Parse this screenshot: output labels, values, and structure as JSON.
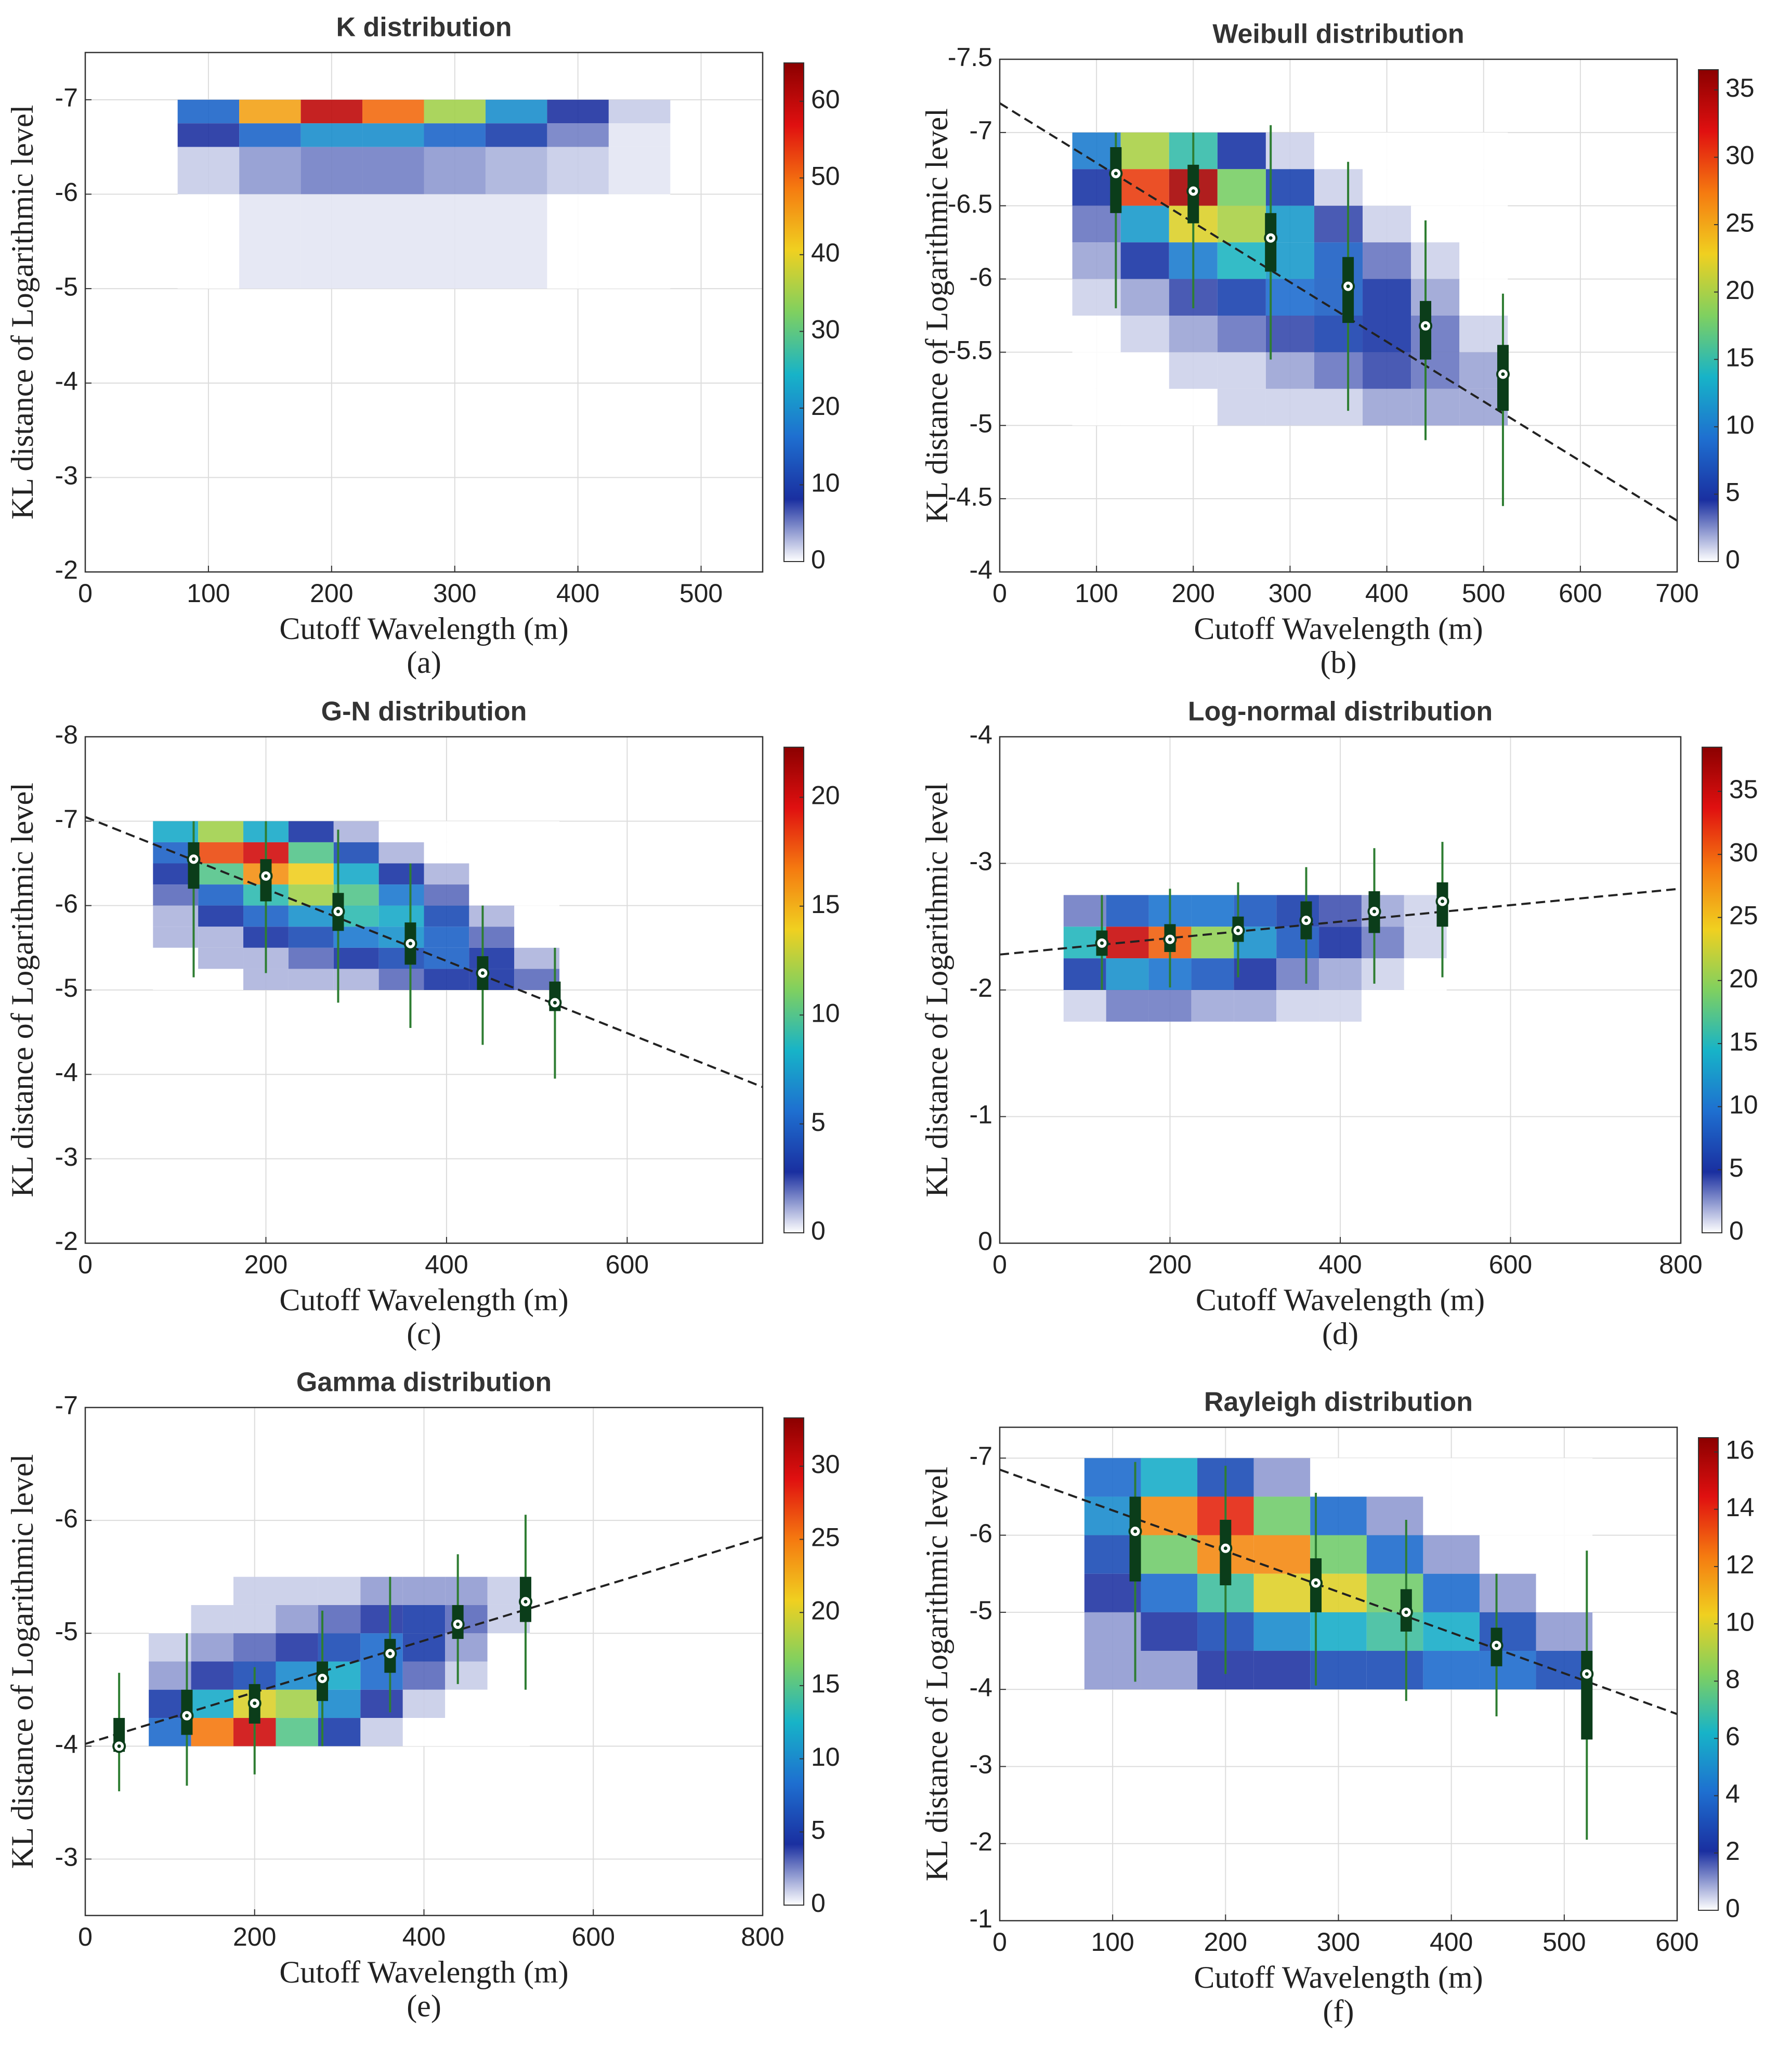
{
  "chart_data": [
    {
      "type": "heatmap",
      "title": "K distribution",
      "xlabel": "Cutoff Wavelength (m)",
      "ylabel": "KL distance of Logarithmic level",
      "panel": "(a)",
      "xlim": [
        0,
        550
      ],
      "xticks": [
        0,
        100,
        200,
        300,
        400,
        500
      ],
      "ylim": [
        -2,
        -7.5
      ],
      "yticks": [
        -7,
        -6,
        -5,
        -4,
        -3,
        -2
      ],
      "grid": true,
      "density": {
        "xbins": [
          75,
          125,
          175,
          225,
          275,
          325,
          375,
          425,
          475
        ],
        "ybins": [
          -7,
          -6.75,
          -6.5,
          -6,
          -5
        ],
        "counts": [
          [
            15,
            45,
            60,
            50,
            35,
            20,
            8,
            2
          ],
          [
            8,
            15,
            20,
            20,
            15,
            10,
            5,
            1
          ],
          [
            2,
            4,
            5,
            5,
            4,
            3,
            2,
            1
          ],
          [
            0,
            1,
            1,
            1,
            1,
            1,
            0,
            0
          ]
        ]
      },
      "clim": [
        0,
        65
      ],
      "cticks": [
        0,
        10,
        20,
        30,
        40,
        50,
        60
      ],
      "colormap": [
        "#ffffff",
        "#1a2fa0",
        "#1e6fd0",
        "#17b3c8",
        "#7fd060",
        "#f0d020",
        "#f57a10",
        "#e01010",
        "#8b0000"
      ]
    },
    {
      "type": "heatmap",
      "title": "Weibull distribution",
      "xlabel": "Cutoff Wavelength (m)",
      "ylabel": "KL distance of Logarithmic level",
      "panel": "(b)",
      "xlim": [
        0,
        700
      ],
      "xticks": [
        0,
        100,
        200,
        300,
        400,
        500,
        600,
        700
      ],
      "ylim": [
        -4,
        -7.5
      ],
      "yticks": [
        -7.5,
        -7,
        -6.5,
        -6,
        -5.5,
        -5,
        -4.5,
        -4
      ],
      "grid": true,
      "density": {
        "xbins": [
          75,
          125,
          175,
          225,
          275,
          325,
          375,
          425,
          475,
          525
        ],
        "ybins": [
          -7,
          -6.75,
          -6.5,
          -6.25,
          -6,
          -5.75,
          -5.5,
          -5.25,
          -5
        ],
        "counts": [
          [
            10,
            20,
            15,
            5,
            1,
            0,
            0,
            0,
            0
          ],
          [
            5,
            30,
            35,
            18,
            6,
            1,
            0,
            0,
            0
          ],
          [
            3,
            12,
            22,
            20,
            12,
            4,
            1,
            0,
            0
          ],
          [
            2,
            5,
            10,
            14,
            12,
            8,
            3,
            1,
            0
          ],
          [
            1,
            2,
            4,
            6,
            9,
            8,
            5,
            2,
            0
          ],
          [
            0,
            1,
            2,
            3,
            4,
            6,
            5,
            3,
            1
          ],
          [
            0,
            0,
            1,
            1,
            2,
            3,
            4,
            3,
            2
          ],
          [
            0,
            0,
            0,
            1,
            1,
            1,
            2,
            2,
            2
          ]
        ]
      },
      "clim": [
        0,
        36.5
      ],
      "cticks": [
        0,
        5,
        10,
        15,
        20,
        25,
        30,
        35
      ],
      "colormap": [
        "#ffffff",
        "#1a2fa0",
        "#1e6fd0",
        "#17b3c8",
        "#7fd060",
        "#f0d020",
        "#f57a10",
        "#e01010",
        "#8b0000"
      ],
      "boxes": {
        "x": [
          120,
          200,
          280,
          360,
          440,
          520
        ],
        "median": [
          -6.72,
          -6.6,
          -6.28,
          -5.95,
          -5.68,
          -5.35
        ],
        "q1": [
          -6.9,
          -6.78,
          -6.45,
          -6.15,
          -5.85,
          -5.55
        ],
        "q3": [
          -6.45,
          -6.38,
          -6.05,
          -5.7,
          -5.45,
          -5.1
        ],
        "whislo": [
          -7.0,
          -7.0,
          -7.05,
          -6.8,
          -6.4,
          -5.9
        ],
        "whishi": [
          -5.8,
          -5.8,
          -5.45,
          -5.1,
          -4.9,
          -4.45
        ]
      },
      "box_color": "#0b3d1a",
      "whisker_color": "#2e7d32",
      "fit": {
        "x": [
          0,
          700
        ],
        "y": [
          -7.2,
          -4.35
        ]
      },
      "fit_color": "#222222"
    },
    {
      "type": "heatmap",
      "title": "G-N distribution",
      "xlabel": "Cutoff Wavelength (m)",
      "ylabel": "KL distance of Logarithmic level",
      "panel": "(c)",
      "xlim": [
        0,
        750
      ],
      "xticks": [
        0,
        200,
        400,
        600
      ],
      "ylim": [
        -2,
        -8
      ],
      "yticks": [
        -8,
        -7,
        -6,
        -5,
        -4,
        -3,
        -2
      ],
      "grid": true,
      "density": {
        "xbins": [
          75,
          125,
          175,
          225,
          275,
          325,
          375,
          425,
          475,
          525
        ],
        "ybins": [
          -7,
          -6.75,
          -6.5,
          -6.25,
          -6,
          -5.75,
          -5.5,
          -5.25,
          -5
        ],
        "counts": [
          [
            8,
            12,
            8,
            3,
            1,
            0,
            0,
            0,
            0
          ],
          [
            5,
            18,
            20,
            10,
            4,
            1,
            0,
            0,
            0
          ],
          [
            3,
            10,
            16,
            14,
            8,
            3,
            1,
            0,
            0
          ],
          [
            2,
            5,
            9,
            12,
            10,
            6,
            2,
            0,
            0
          ],
          [
            1,
            3,
            5,
            7,
            9,
            8,
            4,
            1,
            0
          ],
          [
            1,
            1,
            3,
            4,
            6,
            7,
            5,
            2,
            0
          ],
          [
            0,
            1,
            1,
            2,
            3,
            4,
            5,
            3,
            1
          ],
          [
            0,
            0,
            1,
            1,
            1,
            2,
            3,
            3,
            2
          ]
        ]
      },
      "clim": [
        0,
        22.3
      ],
      "cticks": [
        0,
        5,
        10,
        15,
        20
      ],
      "colormap": [
        "#ffffff",
        "#1a2fa0",
        "#1e6fd0",
        "#17b3c8",
        "#7fd060",
        "#f0d020",
        "#f57a10",
        "#e01010",
        "#8b0000"
      ],
      "boxes": {
        "x": [
          120,
          200,
          280,
          360,
          440,
          520
        ],
        "median": [
          -6.55,
          -6.35,
          -5.93,
          -5.55,
          -5.2,
          -4.85
        ],
        "q1": [
          -6.75,
          -6.55,
          -6.15,
          -5.8,
          -5.4,
          -5.1
        ],
        "q3": [
          -6.2,
          -6.05,
          -5.7,
          -5.3,
          -5.0,
          -4.75
        ],
        "whislo": [
          -7.0,
          -7.0,
          -6.9,
          -6.5,
          -6.0,
          -5.5
        ],
        "whishi": [
          -5.15,
          -5.2,
          -4.85,
          -4.55,
          -4.35,
          -3.95
        ]
      },
      "box_color": "#0b3d1a",
      "whisker_color": "#2e7d32",
      "fit": {
        "x": [
          0,
          750
        ],
        "y": [
          -7.05,
          -3.85
        ]
      },
      "fit_color": "#222222"
    },
    {
      "type": "heatmap",
      "title": "Log-normal distribution",
      "xlabel": "Cutoff Wavelength (m)",
      "ylabel": "KL distance of Logarithmic level",
      "panel": "(d)",
      "xlim": [
        0,
        800
      ],
      "xticks": [
        0,
        200,
        400,
        600,
        800
      ],
      "ylim": [
        0,
        -4
      ],
      "yticks": [
        -4,
        -3,
        -2,
        -1,
        0
      ],
      "grid": true,
      "density": {
        "xbins": [
          75,
          125,
          175,
          225,
          275,
          325,
          375,
          425,
          475,
          525
        ],
        "ybins": [
          -2.75,
          -2.5,
          -2.25,
          -2,
          -1.75
        ],
        "counts": [
          [
            3,
            8,
            10,
            10,
            8,
            6,
            4,
            2,
            1
          ],
          [
            15,
            35,
            30,
            20,
            12,
            8,
            5,
            3,
            1
          ],
          [
            6,
            12,
            10,
            8,
            5,
            3,
            2,
            1,
            0
          ],
          [
            1,
            3,
            3,
            2,
            2,
            1,
            1,
            0,
            0
          ]
        ]
      },
      "clim": [
        0,
        38.5
      ],
      "cticks": [
        0,
        5,
        10,
        15,
        20,
        25,
        30,
        35
      ],
      "colormap": [
        "#ffffff",
        "#1a2fa0",
        "#1e6fd0",
        "#17b3c8",
        "#7fd060",
        "#f0d020",
        "#f57a10",
        "#e01010",
        "#8b0000"
      ],
      "boxes": {
        "x": [
          120,
          200,
          280,
          360,
          440,
          520
        ],
        "median": [
          -2.37,
          -2.4,
          -2.47,
          -2.55,
          -2.62,
          -2.7
        ],
        "q1": [
          -2.47,
          -2.52,
          -2.58,
          -2.7,
          -2.78,
          -2.85
        ],
        "q3": [
          -2.27,
          -2.3,
          -2.38,
          -2.4,
          -2.45,
          -2.5
        ],
        "whislo": [
          -2.75,
          -2.8,
          -2.85,
          -2.97,
          -3.12,
          -3.17
        ],
        "whishi": [
          -2.0,
          -2.02,
          -2.1,
          -2.05,
          -2.05,
          -2.1
        ]
      },
      "box_color": "#0b3d1a",
      "whisker_color": "#2e7d32",
      "fit": {
        "x": [
          0,
          800
        ],
        "y": [
          -2.28,
          -2.8
        ]
      },
      "fit_color": "#222222"
    },
    {
      "type": "heatmap",
      "title": "Gamma distribution",
      "xlabel": "Cutoff Wavelength (m)",
      "ylabel": "KL distance of Logarithmic level",
      "panel": "(e)",
      "xlim": [
        0,
        800
      ],
      "xticks": [
        0,
        200,
        400,
        600,
        800
      ],
      "ylim": [
        -2.5,
        -7
      ],
      "yticks": [
        -7,
        -6,
        -5,
        -4,
        -3
      ],
      "grid": true,
      "density": {
        "xbins": [
          75,
          125,
          175,
          225,
          275,
          325,
          375,
          425,
          475,
          525
        ],
        "ybins": [
          -5.5,
          -5.25,
          -5,
          -4.75,
          -4.5,
          -4.25,
          -4
        ],
        "counts": [
          [
            0,
            0,
            1,
            1,
            1,
            2,
            2,
            2,
            1
          ],
          [
            0,
            1,
            1,
            2,
            3,
            4,
            5,
            3,
            1
          ],
          [
            1,
            2,
            3,
            4,
            6,
            8,
            5,
            2,
            0
          ],
          [
            2,
            4,
            6,
            10,
            12,
            8,
            3,
            1,
            0
          ],
          [
            5,
            12,
            20,
            18,
            10,
            4,
            1,
            0,
            0
          ],
          [
            8,
            25,
            30,
            15,
            5,
            1,
            0,
            0,
            0
          ]
        ]
      },
      "clim": [
        0,
        33.3
      ],
      "cticks": [
        0,
        5,
        10,
        15,
        20,
        25,
        30
      ],
      "colormap": [
        "#ffffff",
        "#1a2fa0",
        "#1e6fd0",
        "#17b3c8",
        "#7fd060",
        "#f0d020",
        "#f57a10",
        "#e01010",
        "#8b0000"
      ],
      "boxes": {
        "x": [
          40,
          120,
          200,
          280,
          360,
          440,
          520
        ],
        "median": [
          -4.0,
          -4.27,
          -4.38,
          -4.6,
          -4.82,
          -5.08,
          -5.28
        ],
        "q1": [
          -4.25,
          -4.5,
          -4.55,
          -4.75,
          -4.95,
          -5.25,
          -5.5
        ],
        "q3": [
          -3.95,
          -4.1,
          -4.2,
          -4.4,
          -4.65,
          -4.95,
          -5.1
        ],
        "whislo": [
          -4.65,
          -5.0,
          -4.7,
          -5.2,
          -5.5,
          -5.7,
          -6.05
        ],
        "whishi": [
          -3.6,
          -3.65,
          -3.75,
          -4.0,
          -4.3,
          -4.55,
          -4.5
        ]
      },
      "box_color": "#0b3d1a",
      "whisker_color": "#2e7d32",
      "fit": {
        "x": [
          0,
          800
        ],
        "y": [
          -4.02,
          -5.85
        ]
      },
      "fit_color": "#222222"
    },
    {
      "type": "heatmap",
      "title": "Rayleigh distribution",
      "xlabel": "Cutoff Wavelength (m)",
      "ylabel": "KL distance of Logarithmic level",
      "panel": "(f)",
      "xlim": [
        0,
        600
      ],
      "xticks": [
        0,
        100,
        200,
        300,
        400,
        500,
        600
      ],
      "ylim": [
        -1,
        -7.4
      ],
      "yticks": [
        -7,
        -6,
        -5,
        -4,
        -3,
        -2,
        -1
      ],
      "grid": true,
      "density": {
        "xbins": [
          75,
          125,
          175,
          225,
          275,
          325,
          375,
          425,
          475,
          525
        ],
        "ybins": [
          -7,
          -6.5,
          -6,
          -5.5,
          -5,
          -4.5,
          -4
        ],
        "counts": [
          [
            4,
            6,
            3,
            1,
            0,
            0,
            0,
            0,
            0
          ],
          [
            5,
            12,
            14,
            8,
            4,
            1,
            0,
            0,
            0
          ],
          [
            3,
            8,
            12,
            12,
            8,
            4,
            1,
            0,
            0
          ],
          [
            2,
            4,
            7,
            10,
            10,
            8,
            4,
            1,
            0
          ],
          [
            1,
            2,
            3,
            5,
            6,
            7,
            6,
            3,
            1
          ],
          [
            1,
            1,
            2,
            2,
            3,
            3,
            4,
            4,
            3
          ]
        ]
      },
      "clim": [
        0,
        16.5
      ],
      "cticks": [
        0,
        2,
        4,
        6,
        8,
        10,
        12,
        14,
        16
      ],
      "colormap": [
        "#ffffff",
        "#1a2fa0",
        "#1e6fd0",
        "#17b3c8",
        "#7fd060",
        "#f0d020",
        "#f57a10",
        "#e01010",
        "#8b0000"
      ],
      "boxes": {
        "x": [
          120,
          200,
          280,
          360,
          440,
          520
        ],
        "median": [
          -6.05,
          -5.83,
          -5.38,
          -5.0,
          -4.57,
          -4.2
        ],
        "q1": [
          -6.5,
          -6.2,
          -5.7,
          -5.3,
          -4.8,
          -4.5
        ],
        "q3": [
          -5.4,
          -5.35,
          -5.0,
          -4.75,
          -4.3,
          -3.35
        ],
        "whislo": [
          -6.95,
          -6.9,
          -6.55,
          -6.2,
          -5.5,
          -5.8
        ],
        "whishi": [
          -4.1,
          -4.2,
          -4.05,
          -3.85,
          -3.65,
          -2.05
        ]
      },
      "box_color": "#0b3d1a",
      "whisker_color": "#2e7d32",
      "fit": {
        "x": [
          0,
          600
        ],
        "y": [
          -6.85,
          -3.68
        ]
      },
      "fit_color": "#222222"
    }
  ]
}
